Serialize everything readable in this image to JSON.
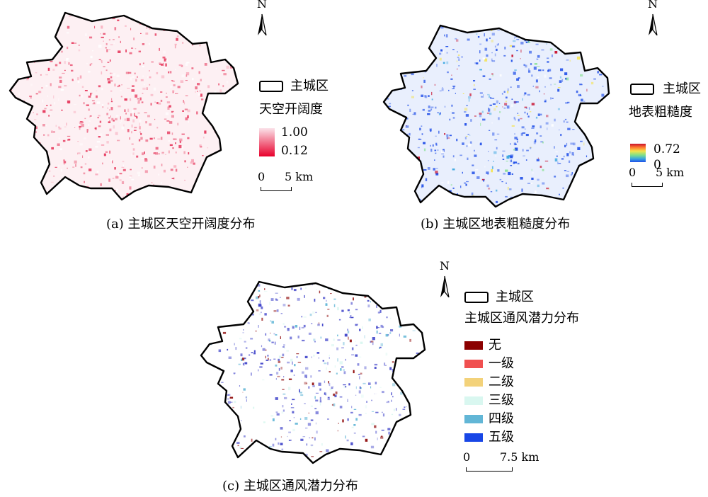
{
  "panel_a": {
    "legend_boundary_label": "主城区",
    "legend_title": "天空开阔度",
    "value_high": "1.00",
    "value_low": "0.12",
    "color_high": "#fbe3ea",
    "color_low": "#e8002c",
    "scale_zero": "0",
    "scale_end": "5 km",
    "north": "N",
    "caption": "(a) 主城区天空开阔度分布",
    "map_tint": "#e6355a"
  },
  "panel_b": {
    "legend_boundary_label": "主城区",
    "legend_title": "地表粗糙度",
    "value_high": "0.72",
    "value_low": "0",
    "scale_zero": "0",
    "scale_end": "5 km",
    "north": "N",
    "caption": "(b) 主城区地表粗糙度分布",
    "map_tint": "#1f4ee8"
  },
  "panel_c": {
    "legend_boundary_label": "主城区",
    "legend_title": "主城区通风潜力分布",
    "classes": [
      {
        "label": "无",
        "color": "#8b0000"
      },
      {
        "label": "一级",
        "color": "#f05050"
      },
      {
        "label": "二级",
        "color": "#f3d27a"
      },
      {
        "label": "三级",
        "color": "#d9f7f0"
      },
      {
        "label": "四级",
        "color": "#62b6d6"
      },
      {
        "label": "五级",
        "color": "#1846e6"
      }
    ],
    "scale_zero": "0",
    "scale_end": "7.5 km",
    "north": "N",
    "caption": "(c) 主城区通风潜力分布",
    "map_tint": "#3a3ec8"
  }
}
